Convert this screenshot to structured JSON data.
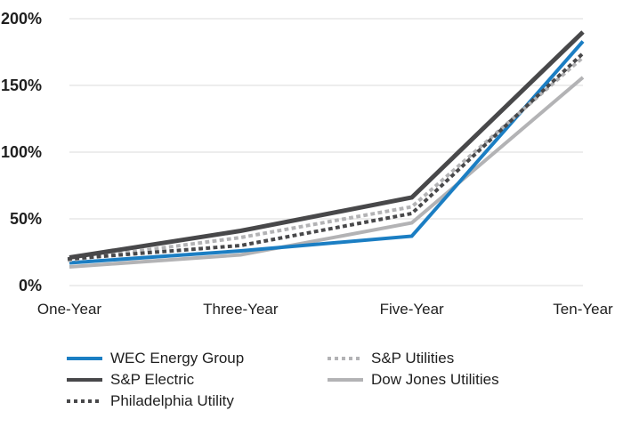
{
  "chart_data": {
    "type": "line",
    "title": "",
    "xlabel": "",
    "ylabel": "",
    "categories": [
      "One-Year",
      "Three-Year",
      "Five-Year",
      "Ten-Year"
    ],
    "y_ticks": {
      "labels": [
        "0%",
        "50%",
        "100%",
        "150%",
        "200%"
      ],
      "values": [
        0,
        50,
        100,
        150,
        200
      ]
    },
    "ylim": [
      0,
      200
    ],
    "grid": "horizontal",
    "legend_position": "bottom",
    "series": [
      {
        "name": "WEC Energy Group",
        "values": [
          17,
          26,
          37,
          183
        ],
        "color": "#1B7EC3",
        "dash": "solid",
        "width": 4
      },
      {
        "name": "S&P Electric",
        "values": [
          21,
          41,
          66,
          190
        ],
        "color": "#48484A",
        "dash": "solid",
        "width": 5
      },
      {
        "name": "Philadelphia Utility",
        "values": [
          20,
          30,
          54,
          174
        ],
        "color": "#48484A",
        "dash": "dotted",
        "width": 4
      },
      {
        "name": "S&P Utilities",
        "values": [
          19,
          36,
          59,
          171
        ],
        "color": "#B3B3B5",
        "dash": "dotted",
        "width": 4
      },
      {
        "name": "Dow Jones Utilities",
        "values": [
          14,
          23,
          47,
          156
        ],
        "color": "#B3B3B5",
        "dash": "solid",
        "width": 4
      }
    ],
    "draw_order": [
      4,
      0,
      3,
      1,
      2
    ],
    "colors": {
      "grid": "#E7E7E7",
      "text": "#1F1F1F"
    }
  }
}
